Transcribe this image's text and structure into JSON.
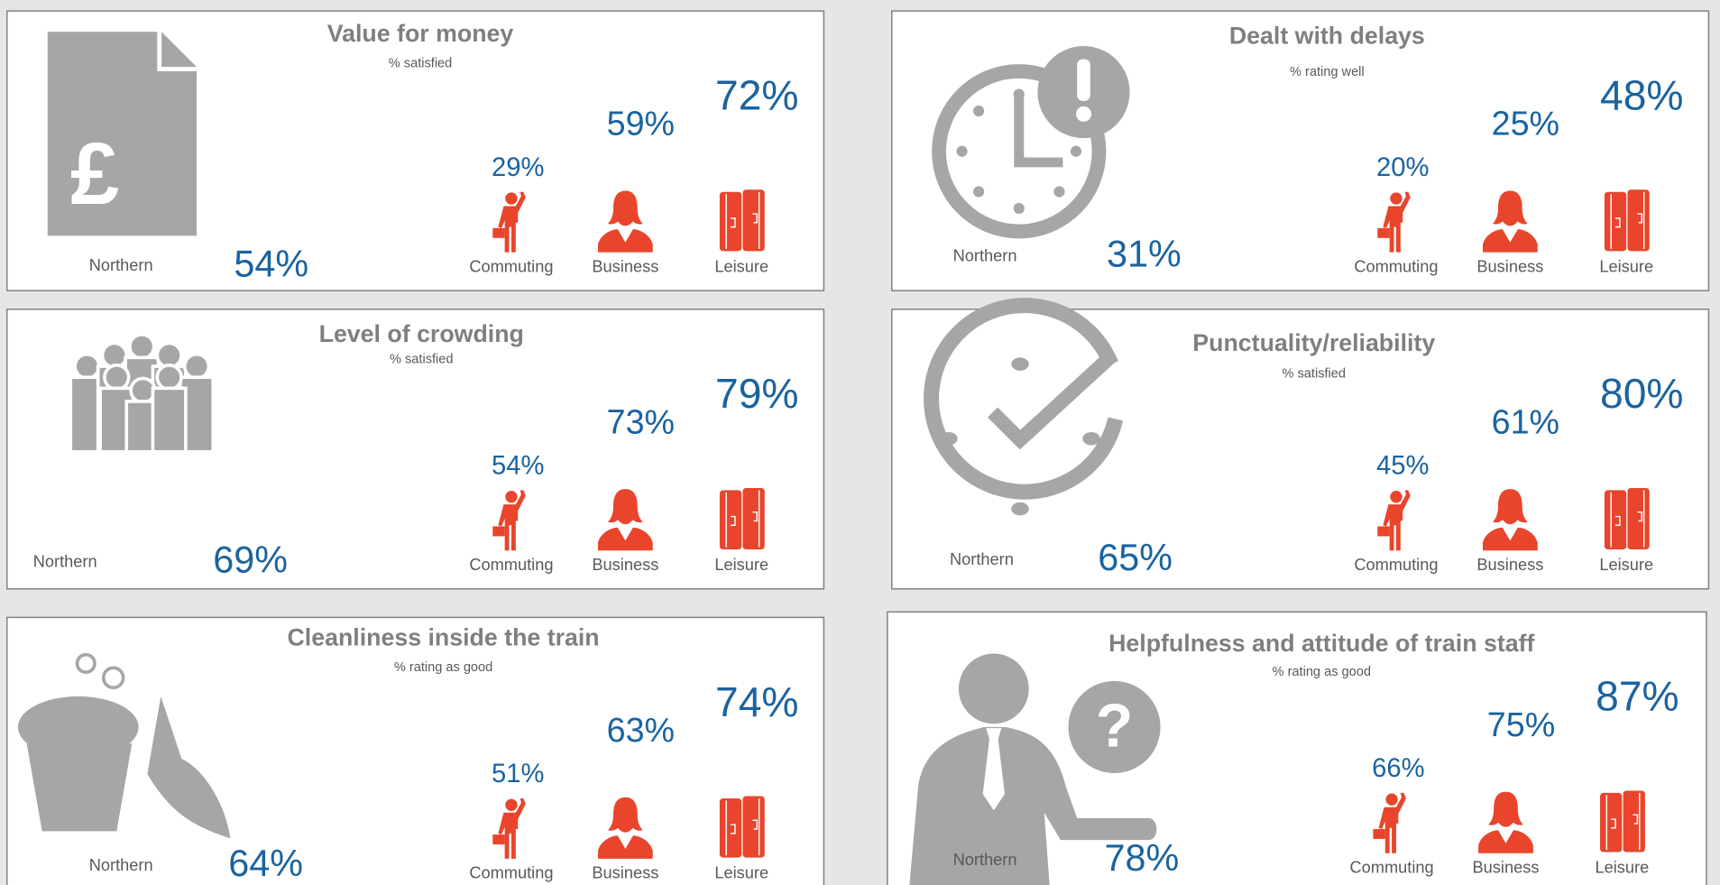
{
  "panels": [
    {
      "title": "Value for money",
      "subtitle": "% satisfied",
      "northern": {
        "label": "Northern",
        "value": "54%"
      },
      "segments": [
        {
          "name": "Commuting",
          "value": "29%"
        },
        {
          "name": "Business",
          "value": "59%"
        },
        {
          "name": "Leisure",
          "value": "72%"
        }
      ]
    },
    {
      "title": "Dealt with delays",
      "subtitle": "% rating well",
      "northern": {
        "label": "Northern",
        "value": "31%"
      },
      "segments": [
        {
          "name": "Commuting",
          "value": "20%"
        },
        {
          "name": "Business",
          "value": "25%"
        },
        {
          "name": "Leisure",
          "value": "48%"
        }
      ]
    },
    {
      "title": "Level of crowding",
      "subtitle": "% satisfied",
      "northern": {
        "label": "Northern",
        "value": "69%"
      },
      "segments": [
        {
          "name": "Commuting",
          "value": "54%"
        },
        {
          "name": "Business",
          "value": "73%"
        },
        {
          "name": "Leisure",
          "value": "79%"
        }
      ]
    },
    {
      "title": "Punctuality/reliability",
      "subtitle": "% satisfied",
      "northern": {
        "label": "Northern",
        "value": "65%"
      },
      "segments": [
        {
          "name": "Commuting",
          "value": "45%"
        },
        {
          "name": "Business",
          "value": "61%"
        },
        {
          "name": "Leisure",
          "value": "80%"
        }
      ]
    },
    {
      "title": "Cleanliness inside the train",
      "subtitle": "% rating as good",
      "northern": {
        "label": "Northern",
        "value": "64%"
      },
      "segments": [
        {
          "name": "Commuting",
          "value": "51%"
        },
        {
          "name": "Business",
          "value": "63%"
        },
        {
          "name": "Leisure",
          "value": "74%"
        }
      ]
    },
    {
      "title": "Helpfulness and attitude of train staff",
      "subtitle": "% rating as good",
      "northern": {
        "label": "Northern",
        "value": "78%"
      },
      "segments": [
        {
          "name": "Commuting",
          "value": "66%"
        },
        {
          "name": "Business",
          "value": "75%"
        },
        {
          "name": "Leisure",
          "value": "87%"
        }
      ]
    }
  ]
}
